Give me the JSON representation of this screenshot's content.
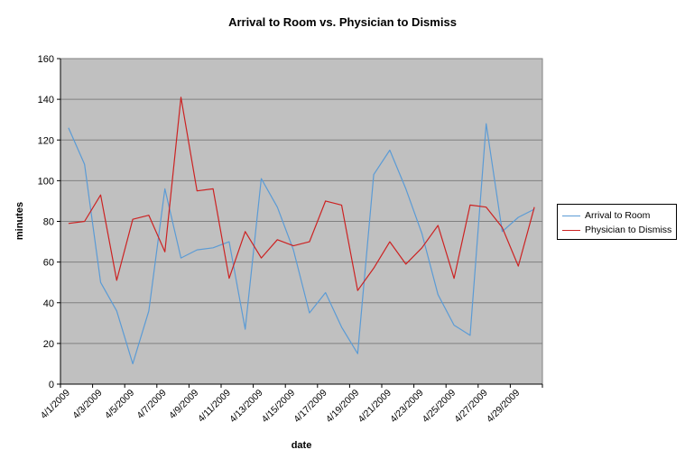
{
  "chart_data": {
    "type": "line",
    "title": "Arrival to Room vs. Physician to Dismiss",
    "xlabel": "date",
    "ylabel": "minutes",
    "ylim": [
      0,
      160
    ],
    "yticks": [
      0,
      20,
      40,
      60,
      80,
      100,
      120,
      140,
      160
    ],
    "x": [
      "4/1/2009",
      "4/2/2009",
      "4/3/2009",
      "4/4/2009",
      "4/5/2009",
      "4/6/2009",
      "4/7/2009",
      "4/8/2009",
      "4/9/2009",
      "4/10/2009",
      "4/11/2009",
      "4/12/2009",
      "4/13/2009",
      "4/14/2009",
      "4/15/2009",
      "4/16/2009",
      "4/17/2009",
      "4/18/2009",
      "4/19/2009",
      "4/20/2009",
      "4/21/2009",
      "4/22/2009",
      "4/23/2009",
      "4/24/2009",
      "4/25/2009",
      "4/26/2009",
      "4/27/2009",
      "4/28/2009",
      "4/29/2009",
      "4/30/2009"
    ],
    "x_tick_labels": [
      "4/1/2009",
      "4/3/2009",
      "4/5/2009",
      "4/7/2009",
      "4/9/2009",
      "4/11/2009",
      "4/13/2009",
      "4/15/2009",
      "4/17/2009",
      "4/19/2009",
      "4/21/2009",
      "4/23/2009",
      "4/25/2009",
      "4/27/2009",
      "4/29/2009"
    ],
    "series": [
      {
        "name": "Arrival to Room",
        "color": "#5b9bd5",
        "values": [
          126,
          108,
          50,
          36,
          10,
          36,
          96,
          62,
          66,
          67,
          70,
          27,
          101,
          87,
          66,
          35,
          45,
          28,
          15,
          103,
          115,
          96,
          74,
          44,
          29,
          24,
          128,
          75,
          82,
          86
        ]
      },
      {
        "name": "Physician to Dismiss",
        "color": "#cc2222",
        "values": [
          79,
          80,
          93,
          51,
          81,
          83,
          65,
          141,
          95,
          96,
          52,
          75,
          62,
          71,
          68,
          70,
          90,
          88,
          46,
          57,
          70,
          59,
          67,
          78,
          52,
          88,
          87,
          77,
          58,
          87
        ]
      }
    ],
    "grid": true,
    "plot_background": "#c0c0c0",
    "legend": "right"
  }
}
